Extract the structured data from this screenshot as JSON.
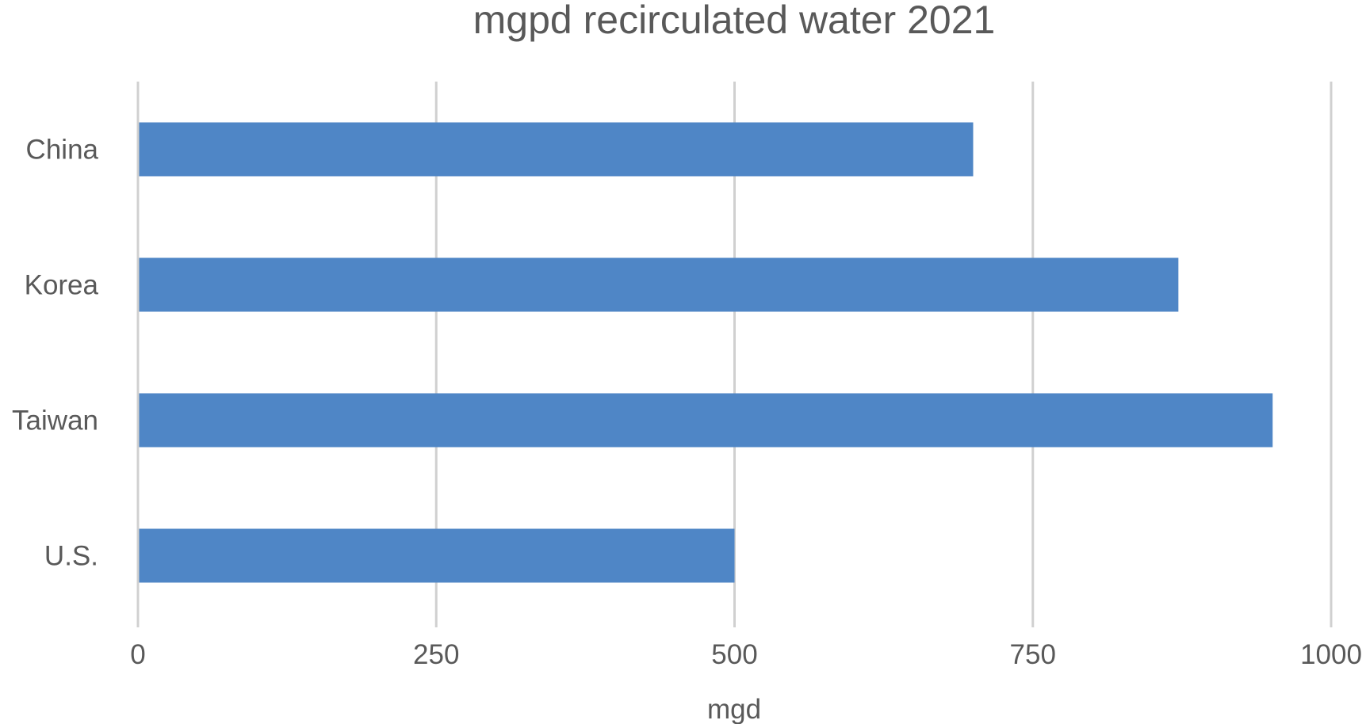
{
  "chart_data": {
    "type": "bar",
    "orientation": "horizontal",
    "title": "mgpd recirculated water 2021",
    "xlabel": "mgd",
    "ylabel": "",
    "categories": [
      "China",
      "Korea",
      "Taiwan",
      "U.S."
    ],
    "values": [
      700,
      872,
      951,
      500
    ],
    "xlim": [
      0,
      1000
    ],
    "xticks": [
      0,
      250,
      500,
      750,
      1000
    ],
    "xtick_labels": [
      "0",
      "250",
      "500",
      "750",
      "1000"
    ],
    "grid": true,
    "legend": "none",
    "colors": {
      "bar": "#4f86c6",
      "grid": "#d0d0d0",
      "text": "#595959"
    }
  }
}
